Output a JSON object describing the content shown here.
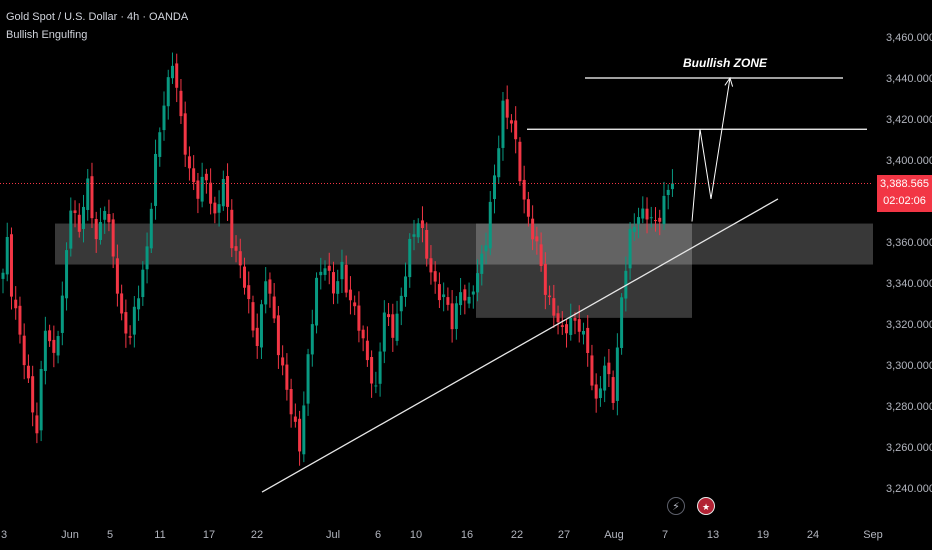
{
  "header": {
    "title": "Gold Spot / U.S. Dollar · 4h · OANDA",
    "indicator": "Bullish Engulfing"
  },
  "price_tag": {
    "price": "3,388.565",
    "countdown": "02:02:06"
  },
  "annotation": {
    "zone_label": "Buullish ZONE"
  },
  "events": {
    "flash_icon": "lightning-icon",
    "flag_icon": "us-flag-icon"
  },
  "colors": {
    "background": "#000000",
    "bull": "#089981",
    "bear": "#f23645",
    "price_line": "#f23645",
    "zone": "#ffffff",
    "trendline": "#e6e6e6"
  },
  "chart_data": {
    "type": "candlestick",
    "symbol": "Gold Spot / U.S. Dollar",
    "timeframe": "4h",
    "source": "OANDA",
    "ylim": [
      3230,
      3475
    ],
    "y_ticks": [
      "3,460.000",
      "3,440.000",
      "3,420.000",
      "3,400.000",
      "3,380.000",
      "3,360.000",
      "3,340.000",
      "3,320.000",
      "3,300.000",
      "3,280.000",
      "3,260.000",
      "3,240.000"
    ],
    "y_tick_values": [
      3460,
      3440,
      3420,
      3400,
      3380,
      3360,
      3340,
      3320,
      3300,
      3280,
      3260,
      3240
    ],
    "x_ticks": [
      "3",
      "Jun",
      "5",
      "11",
      "17",
      "22",
      "Jul",
      "6",
      "10",
      "16",
      "22",
      "27",
      "Aug",
      "7",
      "13",
      "19",
      "24",
      "Sep"
    ],
    "x_tick_bold": [
      "Jun",
      "Jul",
      "Aug"
    ],
    "anchor_path": [
      [
        0,
        3345
      ],
      [
        1,
        3362
      ],
      [
        2,
        3338
      ],
      [
        4,
        3312
      ],
      [
        6,
        3292
      ],
      [
        8,
        3268
      ],
      [
        10,
        3318
      ],
      [
        12,
        3306
      ],
      [
        14,
        3330
      ],
      [
        16,
        3378
      ],
      [
        18,
        3368
      ],
      [
        20,
        3386
      ],
      [
        22,
        3362
      ],
      [
        24,
        3378
      ],
      [
        26,
        3352
      ],
      [
        28,
        3324
      ],
      [
        30,
        3312
      ],
      [
        32,
        3336
      ],
      [
        34,
        3358
      ],
      [
        36,
        3398
      ],
      [
        38,
        3430
      ],
      [
        40,
        3448
      ],
      [
        42,
        3418
      ],
      [
        44,
        3396
      ],
      [
        46,
        3382
      ],
      [
        48,
        3392
      ],
      [
        50,
        3372
      ],
      [
        52,
        3388
      ],
      [
        54,
        3362
      ],
      [
        56,
        3348
      ],
      [
        58,
        3328
      ],
      [
        60,
        3312
      ],
      [
        62,
        3342
      ],
      [
        64,
        3322
      ],
      [
        66,
        3298
      ],
      [
        68,
        3276
      ],
      [
        70,
        3262
      ],
      [
        72,
        3302
      ],
      [
        74,
        3340
      ],
      [
        76,
        3352
      ],
      [
        78,
        3334
      ],
      [
        80,
        3348
      ],
      [
        82,
        3332
      ],
      [
        84,
        3318
      ],
      [
        86,
        3304
      ],
      [
        88,
        3286
      ],
      [
        90,
        3326
      ],
      [
        92,
        3318
      ],
      [
        94,
        3330
      ],
      [
        96,
        3360
      ],
      [
        98,
        3372
      ],
      [
        100,
        3352
      ],
      [
        102,
        3340
      ],
      [
        104,
        3332
      ],
      [
        106,
        3320
      ],
      [
        108,
        3338
      ],
      [
        110,
        3328
      ],
      [
        112,
        3346
      ],
      [
        114,
        3362
      ],
      [
        116,
        3390
      ],
      [
        118,
        3428
      ],
      [
        120,
        3418
      ],
      [
        122,
        3392
      ],
      [
        124,
        3372
      ],
      [
        126,
        3356
      ],
      [
        128,
        3338
      ],
      [
        130,
        3326
      ],
      [
        132,
        3314
      ],
      [
        134,
        3324
      ],
      [
        136,
        3318
      ],
      [
        138,
        3306
      ],
      [
        140,
        3282
      ],
      [
        142,
        3298
      ],
      [
        144,
        3286
      ],
      [
        146,
        3332
      ],
      [
        148,
        3362
      ],
      [
        150,
        3376
      ],
      [
        152,
        3372
      ],
      [
        154,
        3368
      ],
      [
        156,
        3382
      ],
      [
        158,
        3386
      ]
    ],
    "current_price": 3388.565,
    "zones": [
      {
        "from_date": "Jun 2",
        "to_date": "Sep",
        "low": 3349,
        "high": 3369
      },
      {
        "from_date": "Jul 18",
        "to_date": "Aug 9",
        "low": 3323,
        "high": 3369
      }
    ],
    "levels": [
      {
        "price": 3415,
        "from_date": "Jul 23",
        "to_date": "Sep"
      },
      {
        "price": 3440,
        "from_date": "Aug 2",
        "to_date": "Sep"
      }
    ],
    "trendline": {
      "start": [
        "Jun 22",
        3238
      ],
      "end": [
        "Aug 13",
        3381
      ]
    },
    "projection": [
      [
        "Aug 9",
        3370
      ],
      [
        "Aug 10",
        3415
      ],
      [
        "Aug 11",
        3381
      ],
      [
        "Aug 13",
        3440
      ]
    ]
  }
}
